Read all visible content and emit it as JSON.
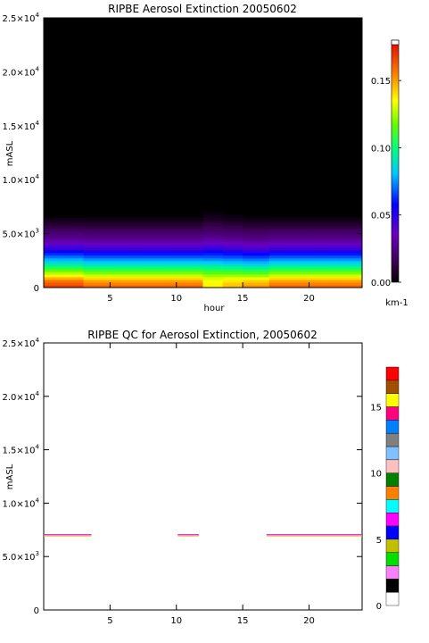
{
  "chart_data": [
    {
      "type": "heatmap",
      "title": "RIPBE Aerosol Extinction 20050602",
      "xlabel": "hour",
      "ylabel": "mASL",
      "xlim": [
        0,
        24
      ],
      "ylim": [
        0,
        25000
      ],
      "x_ticks": [
        "5",
        "10",
        "15",
        "20"
      ],
      "x_tick_values": [
        5,
        10,
        15,
        20
      ],
      "y_ticks": [
        {
          "value": 0,
          "mant": "0",
          "exp": ""
        },
        {
          "value": 5000,
          "mant": "5.0×10",
          "exp": "3"
        },
        {
          "value": 10000,
          "mant": "1.0×10",
          "exp": "4"
        },
        {
          "value": 15000,
          "mant": "1.5×10",
          "exp": "4"
        },
        {
          "value": 20000,
          "mant": "2.0×10",
          "exp": "4"
        },
        {
          "value": 25000,
          "mant": "2.5×10",
          "exp": "4"
        }
      ],
      "colorbar": {
        "range": [
          0,
          0.18
        ],
        "ticks": [
          "0.00",
          "0.05",
          "0.10",
          "0.15"
        ],
        "tick_values": [
          0.0,
          0.05,
          0.1,
          0.15
        ],
        "unit": "km-1"
      },
      "profile_altitude_m": [
        0,
        500,
        1000,
        1500,
        2000,
        2500,
        3000,
        3500,
        4000,
        4500,
        5000,
        5500,
        6000,
        6500
      ],
      "profile_extinction_km-1": [
        0.16,
        0.15,
        0.13,
        0.11,
        0.09,
        0.075,
        0.06,
        0.045,
        0.035,
        0.025,
        0.02,
        0.012,
        0.006,
        0.002
      ],
      "background": "black",
      "grid": false
    },
    {
      "type": "heatmap",
      "title": "RIPBE QC for Aerosol Extinction, 20050602",
      "xlabel": "",
      "ylabel": "mASL",
      "xlim": [
        0,
        24
      ],
      "ylim": [
        0,
        25000
      ],
      "x_ticks": [
        "5",
        "10",
        "15",
        "20"
      ],
      "x_tick_values": [
        5,
        10,
        15,
        20
      ],
      "y_ticks": [
        {
          "value": 0,
          "mant": "0",
          "exp": ""
        },
        {
          "value": 5000,
          "mant": "5.0×10",
          "exp": "3"
        },
        {
          "value": 10000,
          "mant": "1.0×10",
          "exp": "4"
        },
        {
          "value": 15000,
          "mant": "1.5×10",
          "exp": "4"
        },
        {
          "value": 20000,
          "mant": "2.0×10",
          "exp": "4"
        },
        {
          "value": 25000,
          "mant": "2.5×10",
          "exp": "4"
        }
      ],
      "flag_lines": [
        {
          "altitude_m": 7000,
          "x_start": 0,
          "x_end": 3.6
        },
        {
          "altitude_m": 7000,
          "x_start": 10.1,
          "x_end": 11.7
        },
        {
          "altitude_m": 7000,
          "x_start": 16.8,
          "x_end": 24
        }
      ],
      "flag_line_colors": [
        "#ff00ff",
        "#c8c800"
      ],
      "colorbar": {
        "range": [
          0,
          18
        ],
        "ticks": [
          "0",
          "5",
          "10",
          "15"
        ],
        "tick_values": [
          0,
          5,
          10,
          15
        ],
        "colors": [
          "#ffffff",
          "#000000",
          "#ff80ff",
          "#00e000",
          "#c0c000",
          "#0000ff",
          "#ff00ff",
          "#00ffff",
          "#ff8000",
          "#008000",
          "#ffc0c0",
          "#80c0ff",
          "#808080",
          "#0080ff",
          "#ff0080",
          "#ffff00",
          "#a05000",
          "#ff0000"
        ]
      },
      "background": "white",
      "grid": false
    }
  ]
}
